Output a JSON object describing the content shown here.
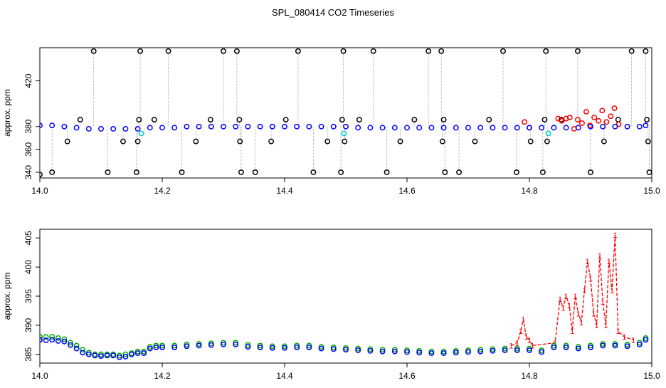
{
  "title": "SPL_080414  CO2 Timeseries",
  "chart_data": [
    {
      "type": "scatter",
      "ylabel": "approx. ppm",
      "xlim": [
        14.0,
        15.0
      ],
      "ylim": [
        335,
        449
      ],
      "xticks": [
        14.0,
        14.2,
        14.4,
        14.6,
        14.8,
        15.0
      ],
      "xtick_labels": [
        "14.0",
        "14.2",
        "14.4",
        "14.6",
        "14.8",
        "15.0"
      ],
      "yticks": [
        340,
        360,
        380,
        420
      ],
      "ytick_labels": [
        "340",
        "360",
        "380",
        "420"
      ],
      "grid": false,
      "series": [
        {
          "color": "#000000",
          "marker": "circle",
          "x": [
            14.0,
            14.02,
            14.045,
            14.066,
            14.088,
            14.111,
            14.136,
            14.158,
            14.16,
            14.162,
            14.164,
            14.187,
            14.21,
            14.232,
            14.255,
            14.279,
            14.3,
            14.322,
            14.326,
            14.327,
            14.329,
            14.352,
            14.378,
            14.402,
            14.422,
            14.447,
            14.47,
            14.492,
            14.494,
            14.496,
            14.498,
            14.522,
            14.545,
            14.567,
            14.589,
            14.612,
            14.635,
            14.656,
            14.658,
            14.66,
            14.662,
            14.685,
            14.711,
            14.734,
            14.757,
            14.779,
            14.802,
            14.822,
            14.825,
            14.827,
            14.829,
            14.852,
            14.879,
            14.9,
            14.922,
            14.945,
            14.967,
            14.99,
            14.992,
            14.994,
            14.996
          ],
          "y": [
            338,
            340,
            367,
            386,
            446,
            340,
            367,
            340,
            367,
            386,
            446,
            386,
            446,
            340,
            367,
            386,
            446,
            446,
            386,
            367,
            340,
            340,
            367,
            386,
            446,
            340,
            367,
            340,
            386,
            446,
            367,
            386,
            446,
            340,
            367,
            386,
            446,
            446,
            367,
            386,
            340,
            340,
            367,
            386,
            446,
            340,
            367,
            340,
            386,
            446,
            367,
            386,
            446,
            340,
            367,
            386,
            446,
            446,
            386,
            367,
            340
          ]
        },
        {
          "color": "#ff0000",
          "marker": "circle",
          "x": [
            14.792,
            14.8,
            14.847,
            14.853,
            14.86,
            14.866,
            14.873,
            14.879,
            14.886,
            14.893,
            14.899,
            14.906,
            14.913,
            14.919,
            14.926,
            14.933,
            14.939,
            14.946
          ],
          "y": [
            384,
            379,
            387,
            385,
            387,
            388,
            378,
            386,
            383,
            393,
            381,
            388,
            385,
            394,
            384,
            389,
            396,
            382
          ]
        },
        {
          "color": "#00cccc",
          "marker": "circle",
          "x": [
            14.166,
            14.497,
            14.831
          ],
          "y": [
            374,
            374,
            374
          ]
        },
        {
          "color": "#0000ff",
          "marker": "circle",
          "x": [
            14.0,
            14.02,
            14.04,
            14.06,
            14.08,
            14.1,
            14.12,
            14.14,
            14.16,
            14.18,
            14.2,
            14.22,
            14.24,
            14.26,
            14.28,
            14.3,
            14.32,
            14.34,
            14.36,
            14.38,
            14.4,
            14.42,
            14.44,
            14.46,
            14.48,
            14.5,
            14.52,
            14.54,
            14.56,
            14.58,
            14.6,
            14.62,
            14.64,
            14.66,
            14.68,
            14.7,
            14.72,
            14.74,
            14.76,
            14.78,
            14.8,
            14.82,
            14.84,
            14.86,
            14.88,
            14.9,
            14.92,
            14.94,
            14.96,
            14.98,
            14.99
          ],
          "y": [
            381,
            381,
            380,
            379,
            378,
            378,
            378,
            378,
            378,
            379,
            379,
            379,
            380,
            380,
            380,
            380,
            380,
            380,
            380,
            380,
            380,
            380,
            380,
            380,
            380,
            380,
            379,
            379,
            379,
            379,
            379,
            379,
            379,
            379,
            379,
            379,
            379,
            379,
            379,
            379,
            379,
            379,
            379,
            379,
            379,
            380,
            380,
            380,
            380,
            380,
            381
          ]
        }
      ]
    },
    {
      "type": "line",
      "ylabel": "approx. ppm",
      "xlim": [
        14.0,
        15.0
      ],
      "ylim": [
        383.5,
        406.5
      ],
      "xticks": [
        14.0,
        14.2,
        14.4,
        14.6,
        14.8,
        15.0
      ],
      "xtick_labels": [
        "14.0",
        "14.2",
        "14.4",
        "14.6",
        "14.8",
        "15.0"
      ],
      "yticks": [
        385,
        390,
        395,
        400,
        405
      ],
      "ytick_labels": [
        "385",
        "390",
        "395",
        "400",
        "405"
      ],
      "grid": false,
      "series": [
        {
          "color": "#ff0000",
          "marker": "1",
          "x": [
            14.77,
            14.78,
            14.786,
            14.79,
            14.795,
            14.8,
            14.805,
            14.842,
            14.85,
            14.855,
            14.86,
            14.865,
            14.87,
            14.875,
            14.88,
            14.885,
            14.89,
            14.895,
            14.9,
            14.905,
            14.91,
            14.915,
            14.92,
            14.925,
            14.93,
            14.935,
            14.94,
            14.945,
            14.955,
            14.97
          ],
          "y": [
            386.5,
            387,
            389,
            391,
            388,
            387.5,
            386.5,
            387,
            394.5,
            393,
            395,
            393.5,
            389,
            395,
            392,
            390.5,
            396,
            401,
            398,
            392,
            390,
            402,
            394,
            390,
            401,
            396,
            405.5,
            389,
            388,
            387.5
          ]
        },
        {
          "color": "#00aa00",
          "marker": "circle",
          "x": [
            14.0,
            14.01,
            14.02,
            14.03,
            14.04,
            14.05,
            14.06,
            14.07,
            14.08,
            14.09,
            14.1,
            14.11,
            14.12,
            14.13,
            14.14,
            14.15,
            14.16,
            14.17,
            14.18,
            14.19,
            14.2,
            14.22,
            14.24,
            14.26,
            14.28,
            14.3,
            14.32,
            14.34,
            14.36,
            14.38,
            14.4,
            14.42,
            14.44,
            14.46,
            14.48,
            14.5,
            14.52,
            14.54,
            14.56,
            14.58,
            14.6,
            14.62,
            14.64,
            14.66,
            14.68,
            14.7,
            14.72,
            14.74,
            14.76,
            14.78,
            14.8,
            14.82,
            14.84,
            14.86,
            14.88,
            14.9,
            14.92,
            14.94,
            14.96,
            14.98,
            14.99
          ],
          "y": [
            388,
            388,
            388,
            387.8,
            387.6,
            387,
            386.5,
            385.8,
            385.3,
            385,
            385,
            385,
            385,
            384.8,
            385,
            385.2,
            385.5,
            385.5,
            386.3,
            386.5,
            386.5,
            386.5,
            386.7,
            386.8,
            386.9,
            387,
            387,
            386.6,
            386.5,
            386.4,
            386.4,
            386.5,
            386.5,
            386.3,
            386.2,
            386.1,
            386,
            385.9,
            385.8,
            385.8,
            385.7,
            385.6,
            385.5,
            385.5,
            385.6,
            385.7,
            385.8,
            385.9,
            386,
            386,
            386,
            385.7,
            386.5,
            386.5,
            386.3,
            386.5,
            386.8,
            386.8,
            386.7,
            387,
            387.8
          ]
        },
        {
          "color": "#0000ff",
          "marker": "circle",
          "x": [
            14.0,
            14.01,
            14.02,
            14.03,
            14.04,
            14.05,
            14.06,
            14.07,
            14.08,
            14.09,
            14.1,
            14.11,
            14.12,
            14.13,
            14.14,
            14.15,
            14.16,
            14.17,
            14.18,
            14.19,
            14.2,
            14.22,
            14.24,
            14.26,
            14.28,
            14.3,
            14.32,
            14.34,
            14.36,
            14.38,
            14.4,
            14.42,
            14.44,
            14.46,
            14.48,
            14.5,
            14.52,
            14.54,
            14.56,
            14.58,
            14.6,
            14.62,
            14.64,
            14.66,
            14.68,
            14.7,
            14.72,
            14.74,
            14.76,
            14.78,
            14.8,
            14.82,
            14.84,
            14.86,
            14.88,
            14.9,
            14.92,
            14.94,
            14.96,
            14.98,
            14.99
          ],
          "y": [
            387.5,
            387.4,
            387.5,
            387.3,
            387.2,
            386.6,
            386,
            385.3,
            385,
            384.8,
            384.7,
            384.8,
            384.8,
            384.5,
            384.6,
            385,
            385.2,
            385.2,
            386,
            386.2,
            386.2,
            386.2,
            386.4,
            386.5,
            386.6,
            386.7,
            386.7,
            386.3,
            386.2,
            386.1,
            386.1,
            386.2,
            386.2,
            386,
            385.9,
            385.8,
            385.7,
            385.6,
            385.5,
            385.5,
            385.4,
            385.3,
            385.2,
            385.2,
            385.3,
            385.4,
            385.5,
            385.6,
            385.7,
            385.7,
            385.7,
            385.4,
            386.2,
            386.2,
            386,
            386.2,
            386.5,
            386.5,
            386.4,
            386.7,
            387.5
          ]
        }
      ]
    }
  ]
}
